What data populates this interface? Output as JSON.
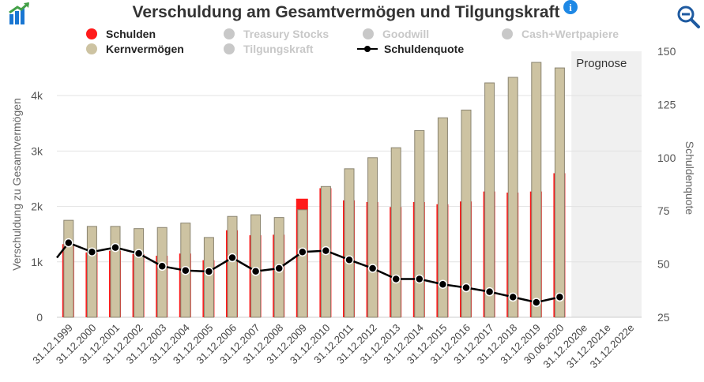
{
  "title": "Verschuldung am Gesamtvermögen und Tilgungskraft",
  "icons": {
    "logo": "growth-chart-icon",
    "info": "info-icon",
    "zoom": "zoom-out-icon"
  },
  "colors": {
    "schulden": "#ff1a1a",
    "kernvermoegen": "#cdc3a2",
    "disabled": "#c8c8c8",
    "quote": "#000000",
    "prognose_bg": "#f0f0f0",
    "info": "#1e88e5",
    "zoom": "#1e5aa0"
  },
  "legend": [
    {
      "label": "Schulden",
      "color": "#ff1a1a",
      "active": true,
      "type": "dot"
    },
    {
      "label": "Treasury Stocks",
      "color": "#c8c8c8",
      "active": false,
      "type": "dot"
    },
    {
      "label": "Goodwill",
      "color": "#c8c8c8",
      "active": false,
      "type": "dot"
    },
    {
      "label": "Cash+Wertpapiere",
      "color": "#c8c8c8",
      "active": false,
      "type": "dot"
    },
    {
      "label": "Kernvermögen",
      "color": "#cdc3a2",
      "active": true,
      "type": "dot"
    },
    {
      "label": "Tilgungskraft",
      "color": "#c8c8c8",
      "active": false,
      "type": "dot"
    },
    {
      "label": "Schuldenquote",
      "color": "#000000",
      "active": true,
      "type": "line"
    }
  ],
  "chart_data": {
    "type": "bar",
    "categories": [
      "31.12.1999",
      "31.12.2000",
      "31.12.2001",
      "31.12.2002",
      "31.12.2003",
      "31.12.2004",
      "31.12.2005",
      "31.12.2006",
      "31.12.2007",
      "31.12.2008",
      "31.12.2009",
      "31.12.2010",
      "31.12.2011",
      "31.12.2012",
      "31.12.2013",
      "31.12.2014",
      "31.12.2015",
      "31.12.2016",
      "31.12.2017",
      "31.12.2018",
      "31.12.2019",
      "30.06.2020",
      "31.12.2020e",
      "31.12.2021e",
      "31.12.2022e"
    ],
    "series": [
      {
        "name": "Schulden",
        "axis": "left",
        "values": [
          1320,
          1170,
          1200,
          1140,
          1110,
          1150,
          1030,
          1570,
          1480,
          1490,
          2140,
          2330,
          2110,
          2080,
          1990,
          2080,
          2040,
          2090,
          2270,
          2250,
          2270,
          2600,
          null,
          null,
          null
        ]
      },
      {
        "name": "Kernvermögen",
        "axis": "left",
        "values": [
          1750,
          1640,
          1640,
          1600,
          1620,
          1700,
          1440,
          1820,
          1850,
          1800,
          1940,
          2360,
          2680,
          2880,
          3060,
          3370,
          3600,
          3740,
          4230,
          4330,
          4600,
          4500,
          null,
          null,
          null
        ]
      },
      {
        "name": "Schuldenquote",
        "type": "line",
        "axis": "right",
        "values": [
          60,
          55.7,
          57.8,
          55,
          49,
          47,
          46.5,
          53,
          46.6,
          48,
          55.7,
          56.3,
          52,
          48,
          43,
          43,
          40.5,
          38.9,
          37,
          34.5,
          32,
          34.5,
          null,
          null,
          null
        ]
      }
    ],
    "y_left": {
      "label": "Verschuldung zu Gesamtvermögen",
      "ticks": [
        "0",
        "1k",
        "2k",
        "3k",
        "4k"
      ],
      "tick_values": [
        0,
        1000,
        2000,
        3000,
        4000
      ],
      "range": [
        0,
        4800
      ]
    },
    "y_right": {
      "label": "Schuldenquote",
      "ticks": [
        "25",
        "50",
        "75",
        "100",
        "125",
        "150"
      ],
      "tick_values": [
        25,
        50,
        75,
        100,
        125,
        150
      ],
      "range": [
        25,
        150
      ]
    },
    "prognose_label": "Prognose",
    "prognose_from_index": 22,
    "grid": true
  }
}
